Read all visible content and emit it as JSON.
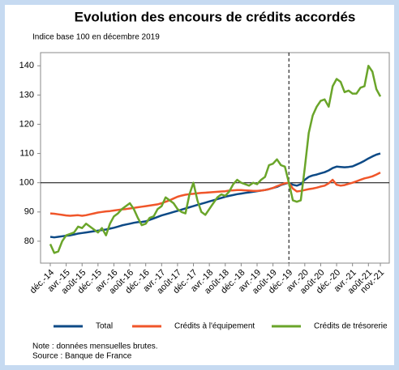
{
  "chart_data": {
    "type": "line",
    "title": "Evolution des encours de crédits accordés",
    "subtitle": "Indice base 100 en décembre 2019",
    "categories": [
      "déc.-14",
      null,
      null,
      null,
      "avr.-15",
      null,
      null,
      null,
      "août-15",
      null,
      null,
      null,
      "déc.-15",
      null,
      null,
      null,
      "avr.-16",
      null,
      null,
      null,
      "août-16",
      null,
      null,
      null,
      "déc.-16",
      null,
      null,
      null,
      "avr.-17",
      null,
      null,
      null,
      "août-17",
      null,
      null,
      null,
      "déc.-17",
      null,
      null,
      null,
      "avr.-18",
      null,
      null,
      null,
      "août-18",
      null,
      null,
      null,
      "déc.-18",
      null,
      null,
      null,
      "avr.-19",
      null,
      null,
      null,
      "août-19",
      null,
      null,
      null,
      "déc.-19",
      null,
      null,
      null,
      "avr.-20",
      null,
      null,
      null,
      "août-20",
      null,
      null,
      null,
      "déc.-20",
      null,
      null,
      null,
      "avr.-21",
      null,
      null,
      null,
      "août-21",
      null,
      null,
      "nov.-21"
    ],
    "series": [
      {
        "name": "Total",
        "color": "#0d4a86",
        "values": [
          81.5,
          81.3,
          81.5,
          81.7,
          81.9,
          82.0,
          82.3,
          82.6,
          82.8,
          83.0,
          83.2,
          83.4,
          83.6,
          83.8,
          84.0,
          84.3,
          84.6,
          85.0,
          85.4,
          85.7,
          86.0,
          86.3,
          86.5,
          86.6,
          86.8,
          87.3,
          87.8,
          88.3,
          88.8,
          89.2,
          89.6,
          90.0,
          90.4,
          90.8,
          91.2,
          91.6,
          92.0,
          92.4,
          92.8,
          93.2,
          93.6,
          94.0,
          94.4,
          94.8,
          95.2,
          95.5,
          95.8,
          96.1,
          96.3,
          96.5,
          96.7,
          96.9,
          97.1,
          97.3,
          97.5,
          97.8,
          98.2,
          98.6,
          99.2,
          99.6,
          100,
          99.3,
          99.0,
          99.5,
          101.0,
          102.0,
          102.5,
          102.8,
          103.2,
          103.6,
          104.2,
          105.0,
          105.5,
          105.4,
          105.3,
          105.4,
          105.6,
          106.2,
          106.8,
          107.5,
          108.3,
          109.0,
          109.6,
          110.0
        ]
      },
      {
        "name": "Crédits à l'équipement",
        "color": "#f0562a",
        "values": [
          89.5,
          89.4,
          89.2,
          89.0,
          88.8,
          88.7,
          88.8,
          88.9,
          88.7,
          88.9,
          89.2,
          89.5,
          89.8,
          90.0,
          90.2,
          90.3,
          90.5,
          90.7,
          90.9,
          91.0,
          91.2,
          91.4,
          91.6,
          91.8,
          92.0,
          92.2,
          92.4,
          92.6,
          93.0,
          93.5,
          94.0,
          94.6,
          95.2,
          95.6,
          95.9,
          96.1,
          96.2,
          96.4,
          96.5,
          96.6,
          96.7,
          96.8,
          96.9,
          97.0,
          97.1,
          97.3,
          97.4,
          97.5,
          97.5,
          97.4,
          97.3,
          97.2,
          97.2,
          97.3,
          97.5,
          97.8,
          98.2,
          98.8,
          99.3,
          99.8,
          100,
          98.0,
          97.0,
          97.2,
          97.5,
          97.8,
          98.0,
          98.3,
          98.7,
          99.0,
          99.8,
          101.0,
          99.3,
          99.0,
          99.2,
          99.6,
          100.0,
          100.5,
          101.0,
          101.5,
          101.8,
          102.2,
          102.8,
          103.5
        ]
      },
      {
        "name": "Crédits de trésorerie",
        "color": "#6aa52a",
        "values": [
          79,
          76,
          76.5,
          80,
          82,
          82.5,
          83,
          85,
          84.5,
          86,
          85,
          84,
          83,
          84.5,
          82,
          86,
          88.5,
          89.5,
          91,
          92,
          93,
          91,
          88,
          85.5,
          86,
          88,
          88.5,
          91,
          92,
          95,
          94,
          93,
          91,
          90,
          89.5,
          96,
          100,
          94,
          90,
          89,
          91,
          93,
          95,
          96,
          95.5,
          97,
          99.5,
          101,
          100,
          99.5,
          99,
          100,
          99.5,
          101,
          102,
          106,
          106.5,
          108,
          106,
          105.5,
          100,
          94,
          93.5,
          94,
          105,
          117,
          123,
          126,
          128,
          128.5,
          126,
          133,
          135.5,
          134.5,
          131,
          131.5,
          130.5,
          130.5,
          132.5,
          133,
          140,
          138,
          132,
          129.5
        ]
      }
    ],
    "ylim": [
      72.5,
      144.5
    ],
    "yticks": [
      80,
      90,
      100,
      110,
      120,
      130,
      140
    ],
    "hline": 100,
    "vline": "déc.-19",
    "legend": "bottom",
    "note": "Note : données mensuelles brutes.",
    "source": "Source : Banque de France"
  }
}
